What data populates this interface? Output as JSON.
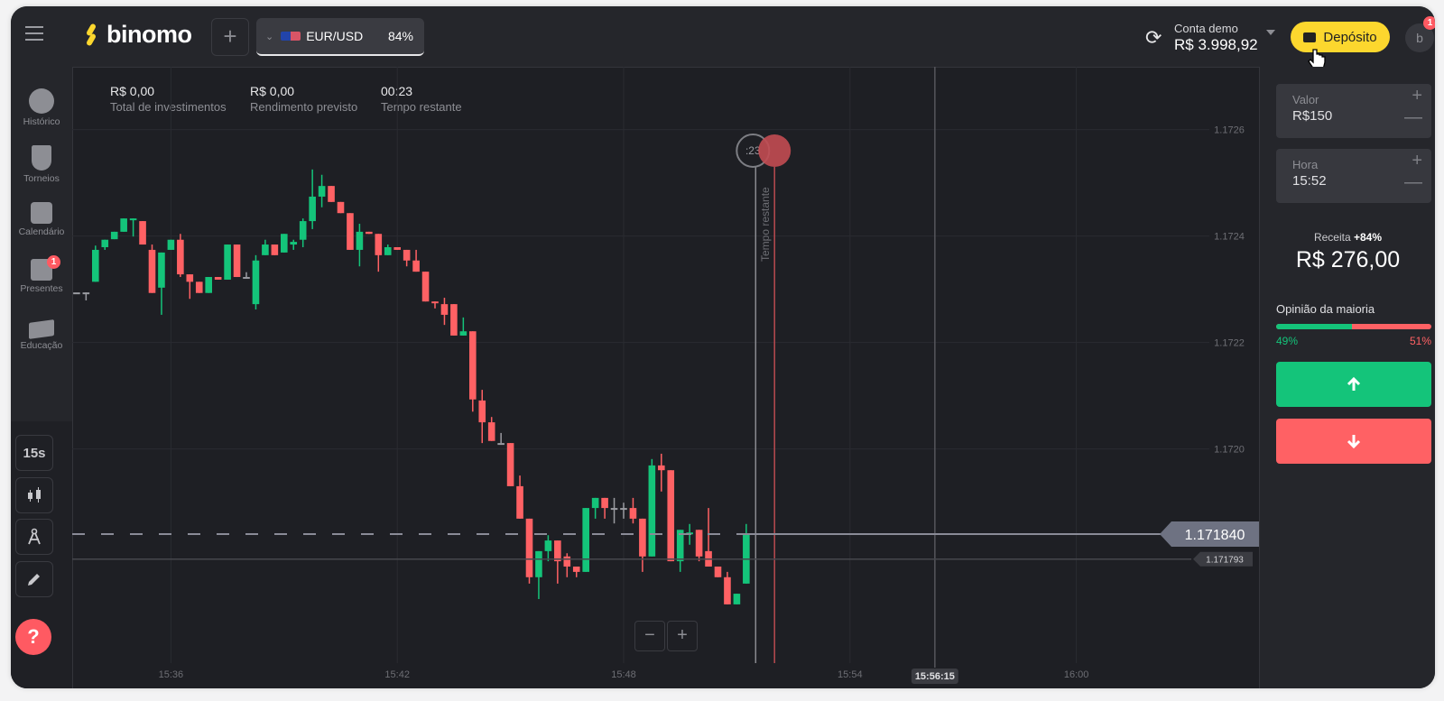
{
  "header": {
    "menu_icon": "hamburger-icon",
    "logo_text": "binomo",
    "add_asset_label": "+",
    "asset": {
      "name": "EUR/USD",
      "payout": "84%",
      "flag_icon": "eu-us-flag-icon"
    },
    "account": {
      "label": "Conta demo",
      "balance": "R$ 3.998,92"
    },
    "deposit_label": "Depósito",
    "avatar_letter": "b",
    "avatar_badge": "1"
  },
  "sidebar": {
    "items": [
      {
        "label": "Histórico",
        "icon": "clock-icon"
      },
      {
        "label": "Torneios",
        "icon": "trophy-icon"
      },
      {
        "label": "Calendário",
        "icon": "calendar-icon"
      },
      {
        "label": "Presentes",
        "icon": "gift-icon",
        "badge": "1"
      },
      {
        "label": "Educação",
        "icon": "graduation-cap-icon"
      }
    ],
    "tools": {
      "timeframe": "15s",
      "chart_type_icon": "candles-icon",
      "indicators_icon": "compass-icon",
      "draw_icon": "pencil-icon"
    },
    "help_label": "?"
  },
  "stats": [
    {
      "value": "R$ 0,00",
      "label": "Total de investimentos"
    },
    {
      "value": "R$ 0,00",
      "label": "Rendimento previsto"
    },
    {
      "value": "00:23",
      "label": "Tempo restante"
    }
  ],
  "chart_overlay": {
    "timer_label": ":23",
    "vertical_label": "Tempo restante",
    "current_price": "1.171840",
    "secondary_price": "1.171793",
    "expiry_time_label": "15:56:15",
    "zoom_out": "−",
    "zoom_in": "+"
  },
  "panel": {
    "amount_label": "Valor",
    "amount_value": "R$150",
    "time_label": "Hora",
    "time_value": "15:52",
    "plus": "+",
    "minus": "—",
    "revenue_label": "Receita",
    "revenue_pct": "+84%",
    "revenue_value": "R$ 276,00",
    "majority_label": "Opinião da maioria",
    "majority_up": 49,
    "majority_up_label": "49%",
    "majority_down_label": "51%",
    "up_icon": "arrow-up-icon",
    "down_icon": "arrow-down-icon"
  },
  "colors": {
    "up": "#14c47a",
    "down": "#ff6164",
    "accent": "#fcd72e",
    "neutral": "#9a9ba1"
  },
  "chart_data": {
    "type": "candlestick",
    "xlabel": "",
    "ylabel": "",
    "y_ticks": [
      "1.1726",
      "1.1724",
      "1.1722",
      "1.1720"
    ],
    "x_ticks": [
      "15:36",
      "15:42",
      "15:48",
      "15:54",
      "16:00"
    ],
    "grid": true,
    "candles": [
      [
        "15:33:30",
        1.172294,
        1.172294,
        1.172294,
        1.172294
      ],
      [
        "15:33:45",
        1.172294,
        1.172294,
        1.172279,
        1.172294
      ],
      [
        "15:34:00",
        1.172314,
        1.172382,
        1.172314,
        1.172374
      ],
      [
        "15:34:15",
        1.172379,
        1.172393,
        1.172374,
        1.172393
      ],
      [
        "15:34:30",
        1.172394,
        1.172408,
        1.172394,
        1.172408
      ],
      [
        "15:34:45",
        1.172408,
        1.172433,
        1.172408,
        1.172433
      ],
      [
        "15:35:00",
        1.17243,
        1.172433,
        1.172399,
        1.172433
      ],
      [
        "15:35:15",
        1.172428,
        1.172428,
        1.172384,
        1.172384
      ],
      [
        "15:35:30",
        1.172374,
        1.172384,
        1.172293,
        1.172293
      ],
      [
        "15:35:45",
        1.172303,
        1.172369,
        1.172252,
        1.172369
      ],
      [
        "15:36:00",
        1.172374,
        1.172393,
        1.172374,
        1.172393
      ],
      [
        "15:36:15",
        1.172393,
        1.172404,
        1.172323,
        1.172328
      ],
      [
        "15:36:30",
        1.172328,
        1.172328,
        1.172282,
        1.172314
      ],
      [
        "15:36:45",
        1.172314,
        1.172314,
        1.172293,
        1.172293
      ],
      [
        "15:37:00",
        1.172293,
        1.172323,
        1.172293,
        1.172323
      ],
      [
        "15:37:15",
        1.172323,
        1.172323,
        1.172318,
        1.172318
      ],
      [
        "15:37:30",
        1.172318,
        1.172384,
        1.172318,
        1.172384
      ],
      [
        "15:37:45",
        1.172384,
        1.172384,
        1.172323,
        1.172323
      ],
      [
        "15:38:00",
        1.172323,
        1.172332,
        1.172323,
        1.172323
      ],
      [
        "15:38:15",
        1.172272,
        1.172364,
        1.172262,
        1.172354
      ],
      [
        "15:38:30",
        1.172364,
        1.172393,
        1.172364,
        1.172384
      ],
      [
        "15:38:45",
        1.172384,
        1.172384,
        1.172364,
        1.172364
      ],
      [
        "15:39:00",
        1.172369,
        1.172404,
        1.172369,
        1.172404
      ],
      [
        "15:39:15",
        1.172384,
        1.172393,
        1.172374,
        1.172389
      ],
      [
        "15:39:30",
        1.172393,
        1.172433,
        1.172379,
        1.172428
      ],
      [
        "15:39:45",
        1.172428,
        1.172525,
        1.172413,
        1.172474
      ],
      [
        "15:40:00",
        1.172474,
        1.172515,
        1.172454,
        1.172494
      ],
      [
        "15:40:15",
        1.172494,
        1.172494,
        1.172464,
        1.172464
      ],
      [
        "15:40:30",
        1.172464,
        1.172464,
        1.172443,
        1.172443
      ],
      [
        "15:40:45",
        1.172443,
        1.172443,
        1.172374,
        1.172374
      ],
      [
        "15:41:00",
        1.172374,
        1.172423,
        1.172343,
        1.172408
      ],
      [
        "15:41:15",
        1.172408,
        1.172408,
        1.172404,
        1.172404
      ],
      [
        "15:41:30",
        1.172404,
        1.172404,
        1.172333,
        1.172364
      ],
      [
        "15:41:45",
        1.172364,
        1.172384,
        1.172364,
        1.172379
      ],
      [
        "15:42:00",
        1.172379,
        1.172379,
        1.172374,
        1.172374
      ],
      [
        "15:42:15",
        1.172374,
        1.172374,
        1.172343,
        1.172354
      ],
      [
        "15:42:30",
        1.172354,
        1.172374,
        1.172333,
        1.172333
      ],
      [
        "15:42:45",
        1.172333,
        1.172333,
        1.172277,
        1.172277
      ],
      [
        "15:43:00",
        1.172277,
        1.172277,
        1.172264,
        1.172274
      ],
      [
        "15:43:15",
        1.172272,
        1.172284,
        1.172233,
        1.172252
      ],
      [
        "15:43:30",
        1.172272,
        1.172272,
        1.172213,
        1.172213
      ],
      [
        "15:43:45",
        1.172213,
        1.172247,
        1.172213,
        1.172221
      ],
      [
        "15:44:00",
        1.172221,
        1.172221,
        1.17207,
        1.172093
      ],
      [
        "15:44:15",
        1.172091,
        1.172111,
        1.172011,
        1.17205
      ],
      [
        "15:44:30",
        1.17205,
        1.17206,
        1.172015,
        1.172015
      ],
      [
        "15:44:45",
        1.172011,
        1.17203,
        1.172011,
        1.172011
      ],
      [
        "15:45:00",
        1.172011,
        1.172011,
        1.17193,
        1.17193
      ],
      [
        "15:45:15",
        1.17193,
        1.17195,
        1.171869,
        1.171869
      ],
      [
        "15:45:30",
        1.171869,
        1.171869,
        1.171747,
        1.171759
      ],
      [
        "15:45:45",
        1.171759,
        1.171808,
        1.171718,
        1.171808
      ],
      [
        "15:46:00",
        1.171808,
        1.171838,
        1.171789,
        1.171828
      ],
      [
        "15:46:15",
        1.171828,
        1.171828,
        1.171747,
        1.171789
      ],
      [
        "15:46:30",
        1.171798,
        1.171804,
        1.171759,
        1.171779
      ],
      [
        "15:46:45",
        1.171779,
        1.171779,
        1.171759,
        1.171769
      ],
      [
        "15:47:00",
        1.171769,
        1.171889,
        1.171769,
        1.171889
      ],
      [
        "15:47:15",
        1.171889,
        1.171908,
        1.171869,
        1.171908
      ],
      [
        "15:47:30",
        1.171908,
        1.171908,
        1.171869,
        1.171889
      ],
      [
        "15:47:45",
        1.171889,
        1.171908,
        1.17186,
        1.171889
      ],
      [
        "15:48:00",
        1.171889,
        1.171899,
        1.171869,
        1.171889
      ],
      [
        "15:48:15",
        1.171889,
        1.171908,
        1.17186,
        1.171869
      ],
      [
        "15:48:30",
        1.171869,
        1.171869,
        1.171769,
        1.171798
      ],
      [
        "15:48:45",
        1.171798,
        1.171981,
        1.171798,
        1.171969
      ],
      [
        "15:49:00",
        1.171969,
        1.171991,
        1.17192,
        1.17196
      ],
      [
        "15:49:15",
        1.17196,
        1.17196,
        1.171789,
        1.171789
      ],
      [
        "15:49:30",
        1.171789,
        1.171848,
        1.171769,
        1.171848
      ],
      [
        "15:49:45",
        1.17184,
        1.171859,
        1.17182,
        1.171843
      ],
      [
        "15:50:00",
        1.171848,
        1.171848,
        1.171789,
        1.171798
      ],
      [
        "15:50:15",
        1.171808,
        1.171889,
        1.171779,
        1.171779
      ],
      [
        "15:50:30",
        1.171779,
        1.171779,
        1.171759,
        1.171759
      ],
      [
        "15:50:45",
        1.171759,
        1.171769,
        1.171708,
        1.171708
      ],
      [
        "15:51:00",
        1.171708,
        1.171728,
        1.171708,
        1.171728
      ],
      [
        "15:51:15",
        1.171747,
        1.171859,
        1.171747,
        1.17184
      ]
    ],
    "current_price": 1.17184,
    "reference_price": 1.171793,
    "now_time": "15:51:30",
    "purchase_deadline": "15:52:00",
    "expiry_time": "15:56:15"
  }
}
